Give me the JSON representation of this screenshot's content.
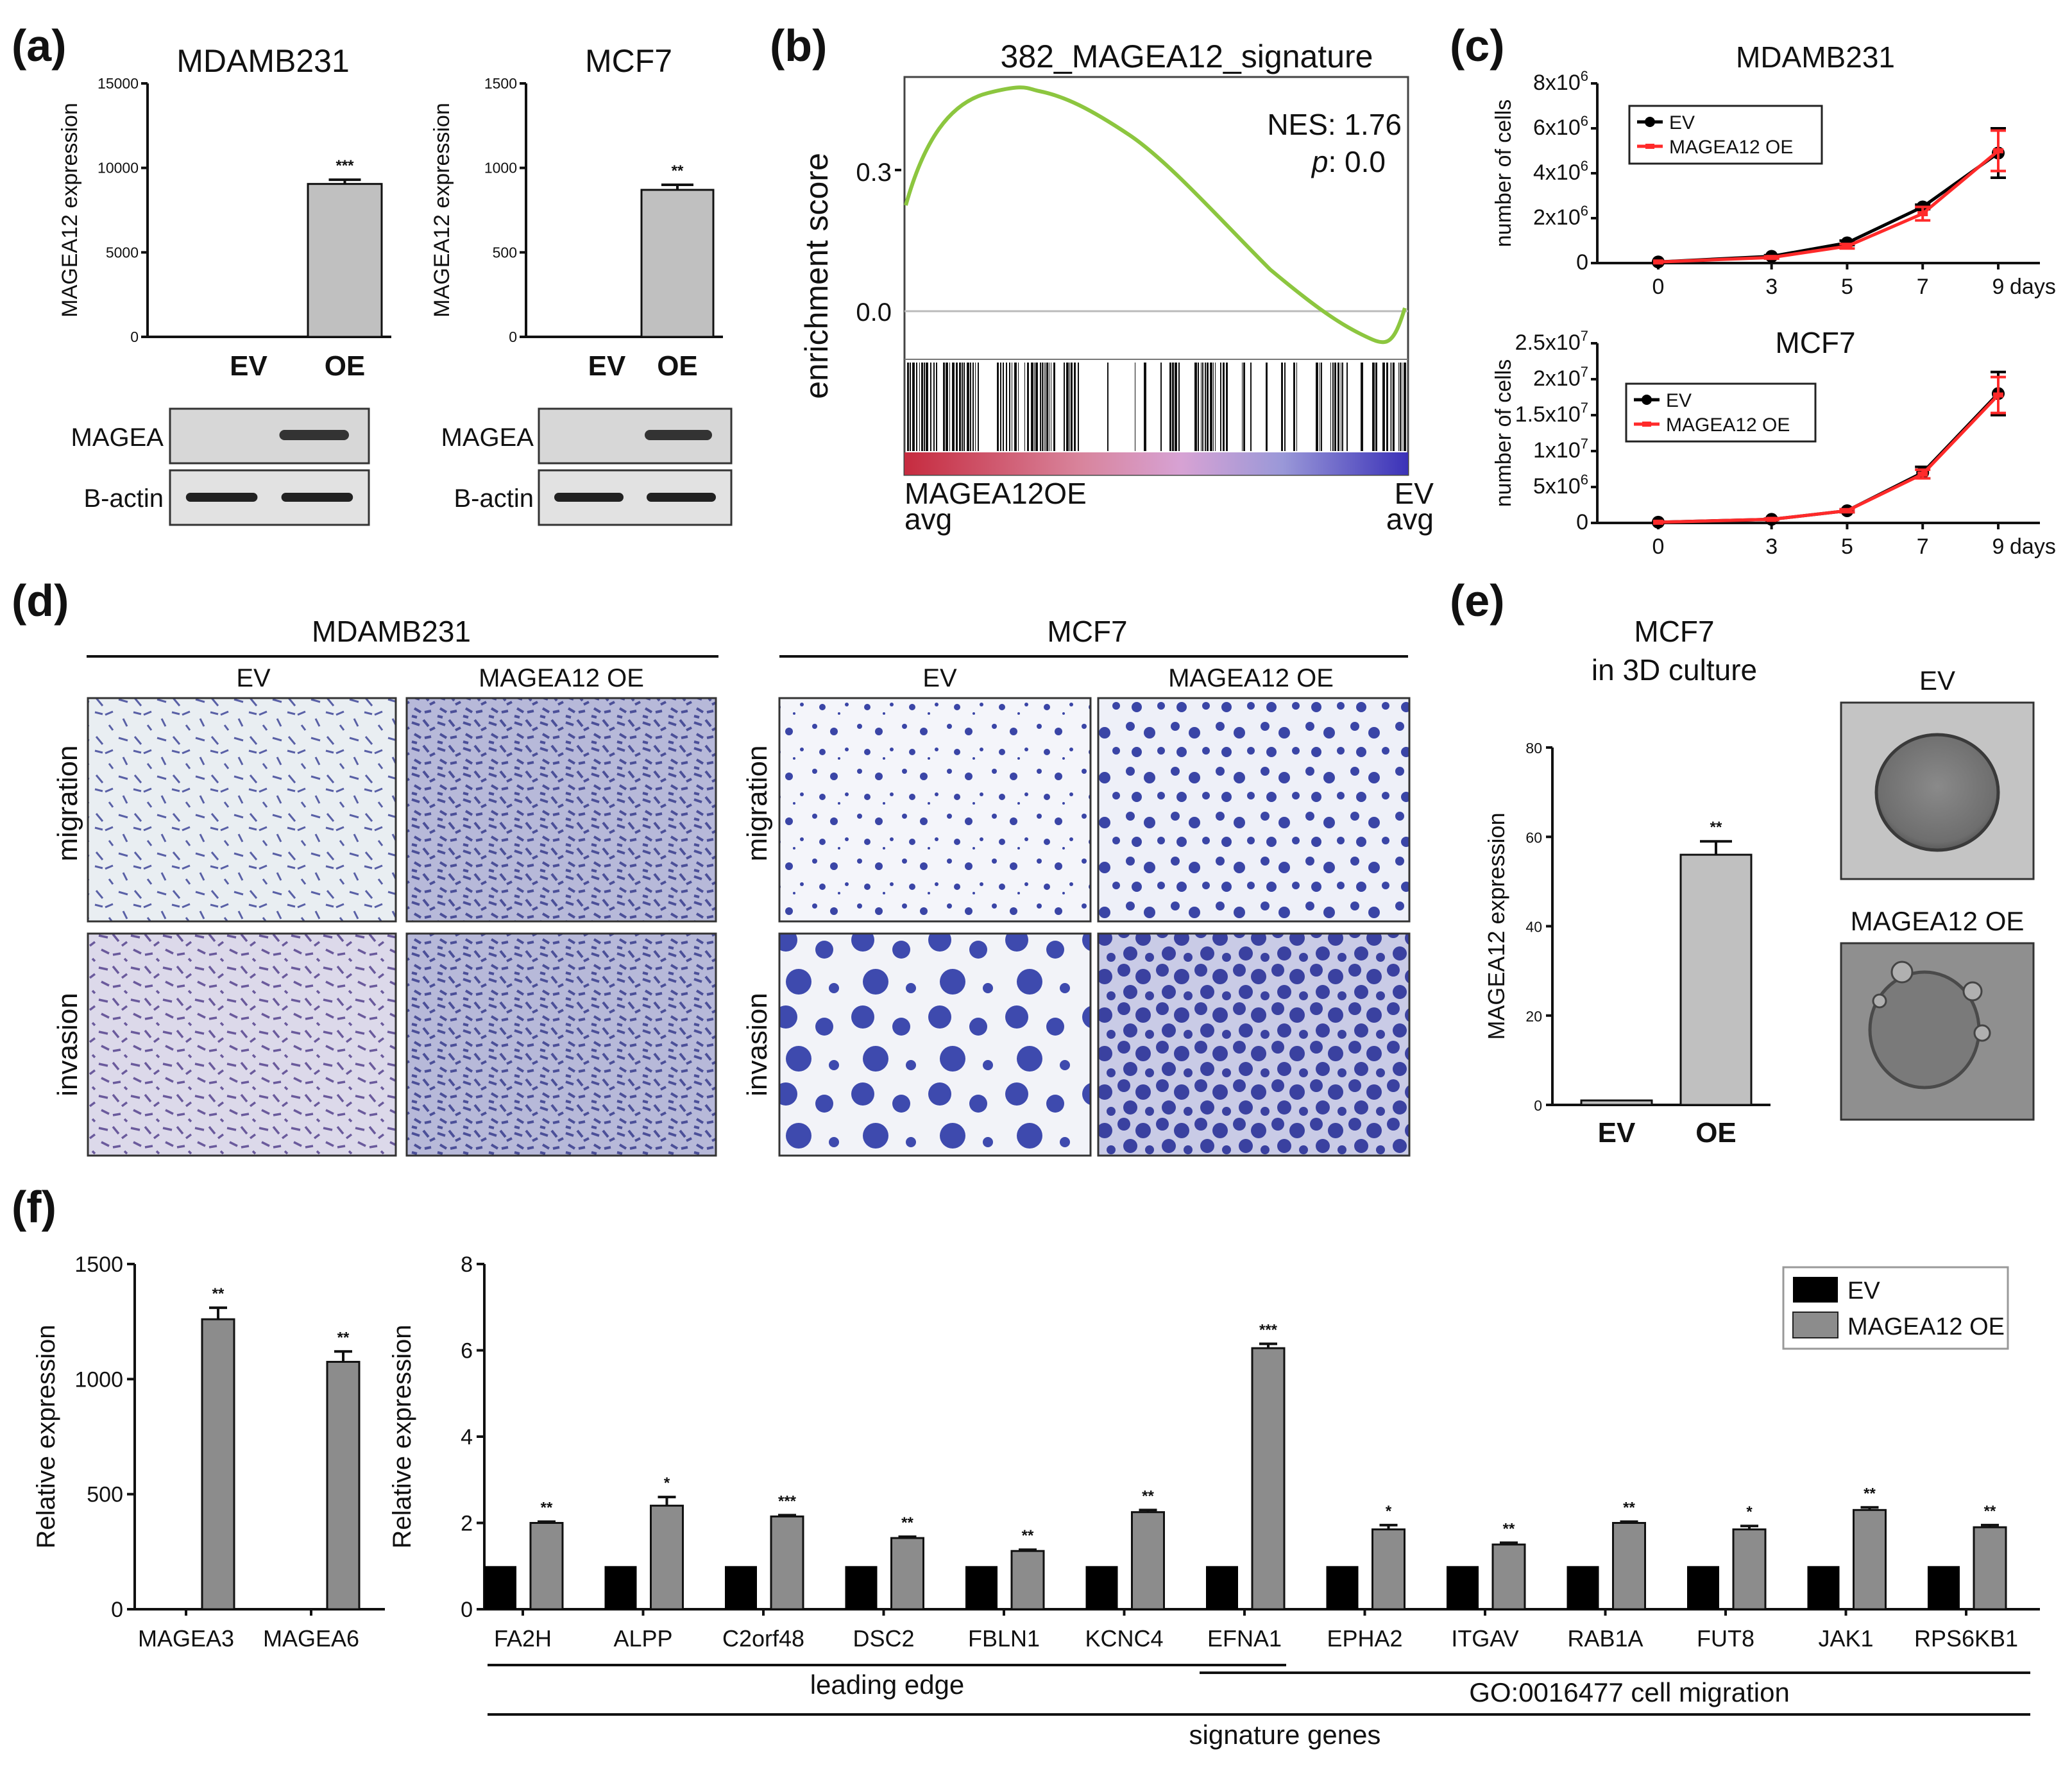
{
  "panels": {
    "a": "(a)",
    "b": "(b)",
    "c": "(c)",
    "d": "(d)",
    "e": "(e)",
    "f": "(f)"
  },
  "panel_a": {
    "charts": [
      {
        "title": "MDAMB231",
        "ylabel": "MAGEA12 expression",
        "yticks": [
          "0",
          "5000",
          "10000",
          "15000"
        ],
        "ymax": 15000,
        "categories": [
          "EV",
          "OE"
        ],
        "values": [
          0,
          9050
        ],
        "errors": [
          0,
          250
        ],
        "sig": "***",
        "blot_labels": [
          "MAGEA",
          "B-actin"
        ]
      },
      {
        "title": "MCF7",
        "ylabel": "MAGEA12 expression",
        "yticks": [
          "0",
          "500",
          "1000",
          "1500"
        ],
        "ymax": 1500,
        "categories": [
          "EV",
          "OE"
        ],
        "values": [
          0,
          870
        ],
        "errors": [
          0,
          30
        ],
        "sig": "**",
        "blot_labels": [
          "MAGEA",
          "B-actin"
        ]
      }
    ]
  },
  "panel_b": {
    "title": "382_MAGEA12_signature",
    "ylabel": "enrichment score",
    "yticks": [
      "0.3",
      "0.0"
    ],
    "nes": "NES: 1.76",
    "p_label": "p",
    "p_value": ": 0.0",
    "left_label": "MAGEA12OE",
    "left_sub": "avg",
    "right_label": "EV",
    "right_sub": "avg",
    "colors": {
      "curve": "#8cc63f"
    }
  },
  "panel_c": {
    "charts": [
      {
        "title": "MDAMB231",
        "ylabel": "number of cells",
        "ytick_base": [
          "0",
          "2x10",
          "4x10",
          "6x10",
          "8x10"
        ],
        "ytick_exp": [
          "",
          "6",
          "6",
          "6",
          "6"
        ],
        "xticks": [
          "0",
          "3",
          "5",
          "7",
          "9"
        ],
        "xunit": "days",
        "x": [
          0,
          3,
          5,
          7,
          9
        ],
        "ymax": 8,
        "series": [
          {
            "name": "EV",
            "color": "#000000",
            "values": [
              0.05,
              0.3,
              0.9,
              2.5,
              4.9
            ],
            "errors": [
              0,
              0.05,
              0.1,
              0.1,
              1.1
            ]
          },
          {
            "name": "MAGEA12 OE",
            "color": "#ff2a2a",
            "values": [
              0.05,
              0.25,
              0.75,
              2.2,
              5.0
            ],
            "errors": [
              0,
              0.05,
              0.1,
              0.3,
              0.9
            ]
          }
        ]
      },
      {
        "title": "MCF7",
        "ylabel": "number of cells",
        "ytick_base": [
          "0",
          "5x10",
          "1x10",
          "1.5x10",
          "2x10",
          "2.5x10"
        ],
        "ytick_exp": [
          "",
          "6",
          "7",
          "7",
          "7",
          "7"
        ],
        "xticks": [
          "0",
          "3",
          "5",
          "7",
          "9"
        ],
        "xunit": "days",
        "x": [
          0,
          3,
          5,
          7,
          9
        ],
        "ymax": 2.5,
        "series": [
          {
            "name": "EV",
            "color": "#000000",
            "values": [
              0.01,
              0.05,
              0.17,
              0.7,
              1.8
            ],
            "errors": [
              0,
              0.01,
              0.02,
              0.08,
              0.3
            ]
          },
          {
            "name": "MAGEA12 OE",
            "color": "#ff2a2a",
            "values": [
              0.01,
              0.05,
              0.17,
              0.68,
              1.78
            ],
            "errors": [
              0,
              0.01,
              0.02,
              0.06,
              0.25
            ]
          }
        ]
      }
    ]
  },
  "panel_d": {
    "groups": [
      {
        "title": "MDAMB231",
        "cols": [
          "EV",
          "MAGEA12 OE"
        ],
        "rows": [
          "migration",
          "invasion"
        ]
      },
      {
        "title": "MCF7",
        "cols": [
          "EV",
          "MAGEA12 OE"
        ],
        "rows": [
          "migration",
          "invasion"
        ]
      }
    ]
  },
  "panel_e": {
    "title1": "MCF7",
    "title2": "in 3D culture",
    "ylabel": "MAGEA12 expression",
    "yticks": [
      "0",
      "20",
      "40",
      "60",
      "80"
    ],
    "ymax": 80,
    "categories": [
      "EV",
      "OE"
    ],
    "values": [
      1,
      56
    ],
    "errors": [
      0,
      3
    ],
    "sig": "**",
    "image_labels": [
      "EV",
      "MAGEA12 OE"
    ]
  },
  "panel_f": {
    "left": {
      "ylabel": "Relative expression",
      "yticks": [
        "0",
        "500",
        "1000",
        "1500"
      ],
      "ymax": 1500,
      "categories": [
        "MAGEA3",
        "MAGEA6"
      ],
      "values": [
        1260,
        1075
      ],
      "errors": [
        50,
        45
      ],
      "sig": [
        "**",
        "**"
      ]
    },
    "right": {
      "ylabel": "Relative expression",
      "yticks": [
        "0",
        "2",
        "4",
        "6",
        "8"
      ],
      "ymax": 8,
      "categories": [
        "FA2H",
        "ALPP",
        "C2orf48",
        "DSC2",
        "FBLN1",
        "KCNC4",
        "EFNA1",
        "EPHA2",
        "ITGAV",
        "RAB1A",
        "FUT8",
        "JAK1",
        "RPS6KB1"
      ],
      "ev": [
        1,
        1,
        1,
        1,
        1,
        1,
        1,
        1,
        1,
        1,
        1,
        1,
        1
      ],
      "oe": [
        2.0,
        2.4,
        2.15,
        1.65,
        1.35,
        2.25,
        6.05,
        1.85,
        1.5,
        2.0,
        1.85,
        2.3,
        1.9
      ],
      "oe_err": [
        0.03,
        0.2,
        0.03,
        0.03,
        0.03,
        0.05,
        0.1,
        0.1,
        0.04,
        0.03,
        0.08,
        0.06,
        0.05
      ],
      "sig": [
        "**",
        "*",
        "***",
        "**",
        "**",
        "**",
        "***",
        "*",
        "**",
        "**",
        "*",
        "**",
        "**"
      ],
      "legend": [
        "EV",
        "MAGEA12 OE"
      ],
      "bracket_leading": "leading edge",
      "bracket_go": "GO:0016477 cell migration",
      "bracket_signature": "signature genes"
    }
  },
  "chart_data": [
    {
      "type": "bar",
      "title": "MDAMB231",
      "ylabel": "MAGEA12 expression",
      "categories": [
        "EV",
        "OE"
      ],
      "values": [
        0,
        9050
      ],
      "ylim": [
        0,
        15000
      ]
    },
    {
      "type": "bar",
      "title": "MCF7",
      "ylabel": "MAGEA12 expression",
      "categories": [
        "EV",
        "OE"
      ],
      "values": [
        0,
        870
      ],
      "ylim": [
        0,
        1500
      ]
    },
    {
      "type": "line",
      "title": "382_MAGEA12_signature",
      "ylabel": "enrichment score",
      "annotations": [
        "NES: 1.76",
        "p: 0.0"
      ]
    },
    {
      "type": "line",
      "title": "MDAMB231",
      "ylabel": "number of cells",
      "x": [
        0,
        3,
        5,
        7,
        9
      ],
      "series": [
        {
          "name": "EV",
          "values": [
            50000,
            300000,
            900000,
            2500000,
            4900000
          ]
        },
        {
          "name": "MAGEA12 OE",
          "values": [
            50000,
            250000,
            750000,
            2200000,
            5000000
          ]
        }
      ]
    },
    {
      "type": "line",
      "title": "MCF7",
      "ylabel": "number of cells",
      "x": [
        0,
        3,
        5,
        7,
        9
      ],
      "series": [
        {
          "name": "EV",
          "values": [
            100000,
            500000,
            1700000,
            7000000,
            18000000
          ]
        },
        {
          "name": "MAGEA12 OE",
          "values": [
            100000,
            500000,
            1700000,
            6800000,
            17800000
          ]
        }
      ]
    },
    {
      "type": "bar",
      "title": "MCF7 in 3D culture",
      "ylabel": "MAGEA12 expression",
      "categories": [
        "EV",
        "OE"
      ],
      "values": [
        1,
        56
      ],
      "ylim": [
        0,
        80
      ]
    },
    {
      "type": "bar",
      "ylabel": "Relative expression",
      "categories": [
        "MAGEA3",
        "MAGEA6"
      ],
      "values": [
        1260,
        1075
      ],
      "ylim": [
        0,
        1500
      ]
    },
    {
      "type": "bar",
      "ylabel": "Relative expression",
      "categories": [
        "FA2H",
        "ALPP",
        "C2orf48",
        "DSC2",
        "FBLN1",
        "KCNC4",
        "EFNA1",
        "EPHA2",
        "ITGAV",
        "RAB1A",
        "FUT8",
        "JAK1",
        "RPS6KB1"
      ],
      "series": [
        {
          "name": "EV",
          "values": [
            1,
            1,
            1,
            1,
            1,
            1,
            1,
            1,
            1,
            1,
            1,
            1,
            1
          ]
        },
        {
          "name": "MAGEA12 OE",
          "values": [
            2.0,
            2.4,
            2.15,
            1.65,
            1.35,
            2.25,
            6.05,
            1.85,
            1.5,
            2.0,
            1.85,
            2.3,
            1.9
          ]
        }
      ],
      "ylim": [
        0,
        8
      ]
    }
  ]
}
